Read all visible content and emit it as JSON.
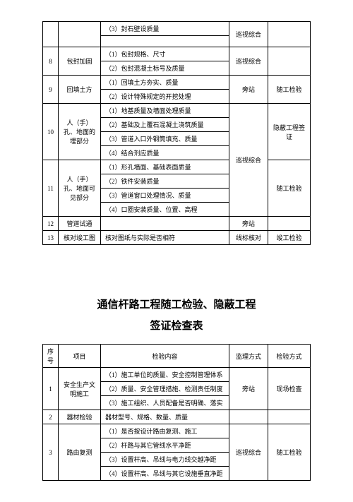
{
  "table1": {
    "r1c1": "（3）封石壁设质量",
    "r2num": "8",
    "r2proj": "包封加固",
    "r2c1": "（1）包封规格、尺寸",
    "r2method": "巡视综合",
    "r3c1": "（2）包封混凝土标号及质量",
    "r4num": "9",
    "r4proj": "回填土方",
    "r4c1": "（1）回填土方夯实、质量",
    "r4method": "旁站",
    "r4check": "随工检验",
    "r5c1": "（2）设计特殊规定的开挖处理",
    "r6num": "10",
    "r6proj": "人（手）孔、地面的埋部分",
    "r6c1": "（1）地基质量及墙面处理质量",
    "r6method": "巡视综合",
    "r6check": "隐蔽工程签证",
    "r7c1": "（2）基础及上覆石混凝土浇筑质量",
    "r8c1": "（3）管道入口外钢筒填充、质量",
    "r9c1": "（4）结合剂应质量",
    "r10num": "11",
    "r10proj": "人（手）孔、地面可见部分",
    "r10c1": "（1）形孔墙面、基础表面质量",
    "r10check": "随工检验",
    "r11c1": "（2）铁件安装质量",
    "r12c1": "（3）管道窗口处理情况、质量",
    "r13c1": "（4）口圈安装质量、位置、高程",
    "r14num": "12",
    "r14proj": "管道试通",
    "r14method": "旁站",
    "r15num": "13",
    "r15proj": "核对竣工图",
    "r15c1": "核对图纸与实际是否相符",
    "r15method": "线标核对",
    "r15check": "竣工检验"
  },
  "title_line1": "通信杆路工程随工检验、隐蔽工程",
  "title_line2": "签证检查表",
  "table2": {
    "h1": "序号",
    "h2": "项目",
    "h3": "检验内容",
    "h4": "监理方式",
    "h5": "检验方式",
    "r1num": "1",
    "r1proj": "安全生产文明施工",
    "r1c1": "（1）施工单位的质量、安全控制管理体系",
    "r1method": "旁站",
    "r1check": "现场检查",
    "r2c1": "（2）质量、安全管理措施、检测责任制度",
    "r3c1": "（3）施工组织、人员配备是否明确、落实",
    "r4num": "2",
    "r4proj": "器材检验",
    "r4c1": "器材型号、规格、数量、质量",
    "r5num": "3",
    "r5proj": "路由复测",
    "r5c1": "（1）是否按设计路由复测、施工",
    "r5method": "巡视综合",
    "r5check": "随工检验",
    "r6c1": "（2）杆路与其它管线水平净距",
    "r7c1": "（3）设置杆高、吊线与电力线交越净距",
    "r8c1": "（4）设置杆高、吊线与其它设施垂直净距"
  }
}
